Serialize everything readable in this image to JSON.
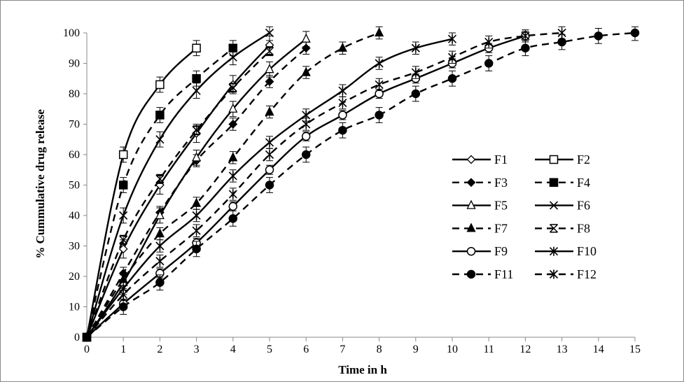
{
  "chart_data": {
    "type": "line",
    "title": "",
    "xlabel": "Time in h",
    "ylabel": "% Cummulative drug release",
    "xlim": [
      0,
      15
    ],
    "ylim": [
      0,
      100
    ],
    "xticks": [
      0,
      1,
      2,
      3,
      4,
      5,
      6,
      7,
      8,
      9,
      10,
      11,
      12,
      13,
      14,
      15
    ],
    "yticks": [
      0,
      10,
      20,
      30,
      40,
      50,
      60,
      70,
      80,
      90,
      100
    ],
    "grid": false,
    "legend_position": "right",
    "series": [
      {
        "name": "F1",
        "marker": "diamond-open",
        "dash": false,
        "err": 3,
        "x": [
          0,
          1,
          2,
          3,
          4,
          5
        ],
        "y": [
          0,
          29,
          50,
          67,
          83,
          96
        ]
      },
      {
        "name": "F2",
        "marker": "square-open",
        "dash": false,
        "err": 2.5,
        "x": [
          0,
          1,
          2,
          3
        ],
        "y": [
          0,
          60,
          83,
          95
        ]
      },
      {
        "name": "F3",
        "marker": "diamond-filled",
        "dash": true,
        "err": 2,
        "x": [
          0,
          1,
          2,
          3,
          4,
          5,
          6
        ],
        "y": [
          0,
          21,
          41,
          58,
          70,
          84,
          95
        ]
      },
      {
        "name": "F4",
        "marker": "square-filled",
        "dash": true,
        "err": 2.5,
        "x": [
          0,
          1,
          2,
          3,
          4
        ],
        "y": [
          0,
          50,
          73,
          85,
          95
        ]
      },
      {
        "name": "F5",
        "marker": "triangle-open",
        "dash": false,
        "err": 2.5,
        "x": [
          0,
          1,
          2,
          3,
          4,
          5,
          6
        ],
        "y": [
          0,
          18,
          40,
          59,
          75,
          88,
          98
        ]
      },
      {
        "name": "F6",
        "marker": "x",
        "dash": false,
        "err": 2.5,
        "x": [
          0,
          1,
          2,
          3,
          4,
          5
        ],
        "y": [
          0,
          40,
          65,
          81,
          92,
          100
        ]
      },
      {
        "name": "F7",
        "marker": "triangle-filled",
        "dash": true,
        "err": 2,
        "x": [
          0,
          1,
          2,
          3,
          4,
          5,
          6,
          7,
          8
        ],
        "y": [
          0,
          19,
          34,
          44,
          59,
          74,
          87,
          95,
          100
        ]
      },
      {
        "name": "F8",
        "marker": "x-bar",
        "dash": true,
        "err": 1.5,
        "x": [
          0,
          1,
          2,
          3,
          4,
          5
        ],
        "y": [
          0,
          32,
          52,
          68,
          82,
          94
        ]
      },
      {
        "name": "F9",
        "marker": "circle-open",
        "dash": false,
        "err": 1.5,
        "x": [
          0,
          1,
          2,
          3,
          4,
          5,
          6,
          7,
          8,
          9,
          10,
          11,
          12
        ],
        "y": [
          0,
          11,
          21,
          31,
          43,
          55,
          66,
          73,
          80,
          85,
          90,
          95,
          99
        ]
      },
      {
        "name": "F10",
        "marker": "asterisk",
        "dash": false,
        "err": 2,
        "x": [
          0,
          1,
          2,
          3,
          4,
          5,
          6,
          7,
          8,
          9,
          10
        ],
        "y": [
          0,
          16,
          30,
          40,
          53,
          64,
          73,
          81,
          90,
          95,
          98
        ]
      },
      {
        "name": "F11",
        "marker": "circle-filled",
        "dash": true,
        "err": 2.5,
        "x": [
          0,
          1,
          2,
          3,
          4,
          5,
          6,
          7,
          8,
          9,
          10,
          11,
          12,
          13,
          14,
          15
        ],
        "y": [
          0,
          10,
          18,
          29,
          39,
          50,
          60,
          68,
          73,
          80,
          85,
          90,
          95,
          97,
          99,
          100
        ]
      },
      {
        "name": "F12",
        "marker": "asterisk",
        "dash": true,
        "err": 2,
        "x": [
          0,
          1,
          2,
          3,
          4,
          5,
          6,
          7,
          8,
          9,
          10,
          11,
          12,
          13
        ],
        "y": [
          0,
          14,
          25,
          35,
          47,
          60,
          70,
          77,
          83,
          87,
          92,
          97,
          99,
          100
        ]
      }
    ]
  }
}
